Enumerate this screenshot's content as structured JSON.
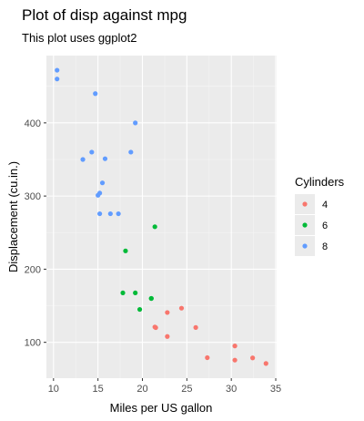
{
  "chart_data": {
    "type": "scatter",
    "title": "Plot of disp against mpg",
    "subtitle": "This plot uses ggplot2",
    "xlabel": "Miles per US gallon",
    "ylabel": "Displacement (cu.in.)",
    "xlim": [
      9.2,
      35.1
    ],
    "ylim": [
      51,
      492
    ],
    "x_ticks": [
      10,
      15,
      20,
      25,
      30,
      35
    ],
    "y_ticks": [
      100,
      200,
      300,
      400
    ],
    "grid": true,
    "background": "#EBEBEB",
    "legend": {
      "title": "Cylinders",
      "placement": "right"
    },
    "series": [
      {
        "name": "4",
        "color": "#F8766D",
        "points": [
          [
            22.8,
            108
          ],
          [
            24.4,
            146.7
          ],
          [
            22.8,
            140.8
          ],
          [
            32.4,
            78.7
          ],
          [
            30.4,
            75.7
          ],
          [
            33.9,
            71.1
          ],
          [
            21.5,
            120.1
          ],
          [
            27.3,
            79
          ],
          [
            26.0,
            120.3
          ],
          [
            30.4,
            95.1
          ],
          [
            21.4,
            121
          ]
        ]
      },
      {
        "name": "6",
        "color": "#00BA38",
        "points": [
          [
            21.0,
            160
          ],
          [
            21.0,
            160
          ],
          [
            21.4,
            258
          ],
          [
            18.1,
            225
          ],
          [
            19.2,
            167.6
          ],
          [
            17.8,
            167.6
          ],
          [
            19.7,
            145
          ]
        ]
      },
      {
        "name": "8",
        "color": "#619CFF",
        "points": [
          [
            18.7,
            360
          ],
          [
            14.3,
            360
          ],
          [
            16.4,
            275.8
          ],
          [
            17.3,
            275.8
          ],
          [
            15.2,
            275.8
          ],
          [
            10.4,
            472
          ],
          [
            10.4,
            460
          ],
          [
            14.7,
            440
          ],
          [
            15.5,
            318
          ],
          [
            15.2,
            304
          ],
          [
            13.3,
            350
          ],
          [
            19.2,
            400
          ],
          [
            15.8,
            351
          ],
          [
            15.0,
            301
          ]
        ]
      }
    ]
  }
}
